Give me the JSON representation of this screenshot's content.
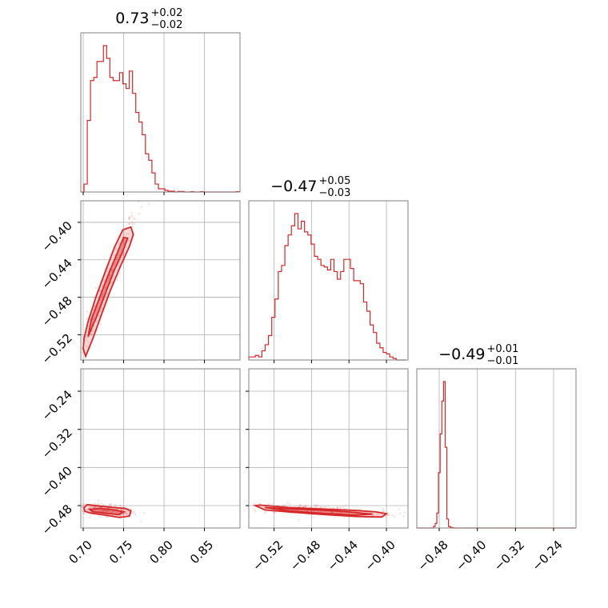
{
  "chart_data": {
    "type": "corner",
    "color": "#d62728",
    "parameters": [
      {
        "index": 0,
        "range": [
          0.697,
          0.894
        ],
        "ticks": [
          0.7,
          0.75,
          0.8,
          0.85
        ],
        "tick_labels": [
          "0.70",
          "0.75",
          "0.80",
          "0.85"
        ]
      },
      {
        "index": 1,
        "range": [
          -0.547,
          -0.377
        ],
        "ticks": [
          -0.52,
          -0.48,
          -0.44,
          -0.4
        ],
        "tick_labels": [
          "−0.52",
          "−0.48",
          "−0.44",
          "−0.40"
        ]
      },
      {
        "index": 2,
        "range": [
          -0.527,
          -0.193
        ],
        "ticks": [
          -0.48,
          -0.4,
          -0.32,
          -0.24
        ],
        "tick_labels": [
          "−0.48",
          "−0.40",
          "−0.32",
          "−0.24"
        ]
      }
    ],
    "titles": [
      {
        "value": "0.73",
        "plus": "+0.02",
        "minus": "−0.02"
      },
      {
        "value": "−0.47",
        "plus": "+0.05",
        "minus": "−0.03"
      },
      {
        "value": "−0.49",
        "plus": "+0.01",
        "minus": "−0.01"
      }
    ],
    "histograms": [
      {
        "param": 0,
        "start": 0.697,
        "bin_width": 0.004,
        "counts": [
          0,
          0.05,
          0.45,
          0.7,
          0.72,
          0.82,
          0.82,
          0.92,
          0.84,
          0.72,
          0.7,
          0.7,
          0.75,
          0.68,
          0.65,
          0.76,
          0.62,
          0.5,
          0.44,
          0.36,
          0.24,
          0.2,
          0.12,
          0.05,
          0.02,
          0.02,
          0.01,
          0.005,
          0.005,
          0.0,
          0.003,
          0.003,
          0.0,
          0.0,
          0.002,
          0.0,
          0.0,
          0.002,
          0.0,
          0.0,
          0.0,
          0.0,
          0.0,
          0.0,
          0.0,
          0.0,
          0.0,
          0.0,
          0.002
        ]
      },
      {
        "param": 1,
        "start": -0.547,
        "bin_width": 0.0035,
        "counts": [
          0.02,
          0.02,
          0.03,
          0.02,
          0.06,
          0.1,
          0.16,
          0.28,
          0.4,
          0.58,
          0.62,
          0.75,
          0.82,
          0.88,
          0.96,
          0.86,
          0.91,
          0.84,
          0.82,
          0.76,
          0.68,
          0.66,
          0.62,
          0.61,
          0.59,
          0.66,
          0.58,
          0.53,
          0.58,
          0.66,
          0.66,
          0.6,
          0.52,
          0.52,
          0.5,
          0.38,
          0.32,
          0.23,
          0.18,
          0.11,
          0.08,
          0.05,
          0.04,
          0.02,
          0.01,
          0.0,
          0.0,
          0.0
        ]
      },
      {
        "param": 2,
        "start": -0.527,
        "bin_width": 0.0035,
        "counts": [
          0,
          0,
          0,
          0,
          0,
          0,
          0,
          0,
          0,
          0,
          0.01,
          0.03,
          0.1,
          0.37,
          0.63,
          0.85,
          0.98,
          0.54,
          0.06,
          0.01,
          0.005,
          0.002,
          0,
          0,
          0,
          0,
          0,
          0,
          0,
          0,
          0,
          0,
          0,
          0,
          0,
          0,
          0,
          0,
          0,
          0,
          0,
          0,
          0,
          0,
          0,
          0,
          0,
          0,
          0,
          0,
          0,
          0,
          0,
          0,
          0,
          0,
          0,
          0,
          0,
          0,
          0,
          0,
          0,
          0,
          0,
          0,
          0,
          0,
          0,
          0,
          0,
          0,
          0,
          0,
          0,
          0,
          0,
          0,
          0,
          0,
          0,
          0,
          0,
          0,
          0,
          0,
          0,
          0,
          0,
          0,
          0,
          0,
          0,
          0,
          0
        ]
      }
    ],
    "pairs": [
      {
        "x_param": 0,
        "y_param": 1,
        "outer_contour": [
          [
            0.7,
            -0.535
          ],
          [
            0.703,
            -0.543
          ],
          [
            0.712,
            -0.524
          ],
          [
            0.722,
            -0.5
          ],
          [
            0.733,
            -0.474
          ],
          [
            0.746,
            -0.447
          ],
          [
            0.757,
            -0.426
          ],
          [
            0.762,
            -0.413
          ],
          [
            0.759,
            -0.405
          ],
          [
            0.749,
            -0.408
          ],
          [
            0.739,
            -0.426
          ],
          [
            0.728,
            -0.451
          ],
          [
            0.716,
            -0.479
          ],
          [
            0.706,
            -0.506
          ],
          [
            0.701,
            -0.524
          ]
        ],
        "inner_contour": [
          [
            0.706,
            -0.522
          ],
          [
            0.716,
            -0.502
          ],
          [
            0.727,
            -0.477
          ],
          [
            0.738,
            -0.452
          ],
          [
            0.748,
            -0.433
          ],
          [
            0.755,
            -0.417
          ],
          [
            0.75,
            -0.416
          ],
          [
            0.742,
            -0.433
          ],
          [
            0.731,
            -0.456
          ],
          [
            0.72,
            -0.481
          ],
          [
            0.71,
            -0.504
          ]
        ],
        "mean": [
          0.728,
          -0.47
        ],
        "sigma": [
          0.017,
          0.036
        ],
        "rho": 0.97
      },
      {
        "x_param": 0,
        "y_param": 2,
        "outer_contour": [
          [
            0.701,
            -0.484
          ],
          [
            0.705,
            -0.478
          ],
          [
            0.72,
            -0.481
          ],
          [
            0.738,
            -0.484
          ],
          [
            0.752,
            -0.486
          ],
          [
            0.759,
            -0.491
          ],
          [
            0.757,
            -0.502
          ],
          [
            0.745,
            -0.505
          ],
          [
            0.727,
            -0.5
          ],
          [
            0.71,
            -0.496
          ],
          [
            0.702,
            -0.492
          ]
        ],
        "inner_contour": [
          [
            0.708,
            -0.488
          ],
          [
            0.722,
            -0.486
          ],
          [
            0.738,
            -0.489
          ],
          [
            0.75,
            -0.493
          ],
          [
            0.744,
            -0.499
          ],
          [
            0.728,
            -0.496
          ],
          [
            0.712,
            -0.493
          ]
        ],
        "mean": [
          0.728,
          -0.49
        ],
        "sigma": [
          0.017,
          0.006
        ],
        "rho": -0.55
      },
      {
        "x_param": 1,
        "y_param": 2,
        "outer_contour": [
          [
            -0.54,
            -0.48
          ],
          [
            -0.535,
            -0.479
          ],
          [
            -0.505,
            -0.484
          ],
          [
            -0.47,
            -0.487
          ],
          [
            -0.435,
            -0.49
          ],
          [
            -0.412,
            -0.493
          ],
          [
            -0.4,
            -0.497
          ],
          [
            -0.405,
            -0.504
          ],
          [
            -0.43,
            -0.503
          ],
          [
            -0.465,
            -0.499
          ],
          [
            -0.5,
            -0.494
          ],
          [
            -0.53,
            -0.489
          ]
        ],
        "inner_contour": [
          [
            -0.53,
            -0.484
          ],
          [
            -0.5,
            -0.487
          ],
          [
            -0.465,
            -0.49
          ],
          [
            -0.435,
            -0.494
          ],
          [
            -0.415,
            -0.498
          ],
          [
            -0.435,
            -0.5
          ],
          [
            -0.47,
            -0.496
          ],
          [
            -0.505,
            -0.491
          ]
        ],
        "mean": [
          -0.47,
          -0.49
        ],
        "sigma": [
          0.036,
          0.006
        ],
        "rho": -0.6
      }
    ]
  }
}
